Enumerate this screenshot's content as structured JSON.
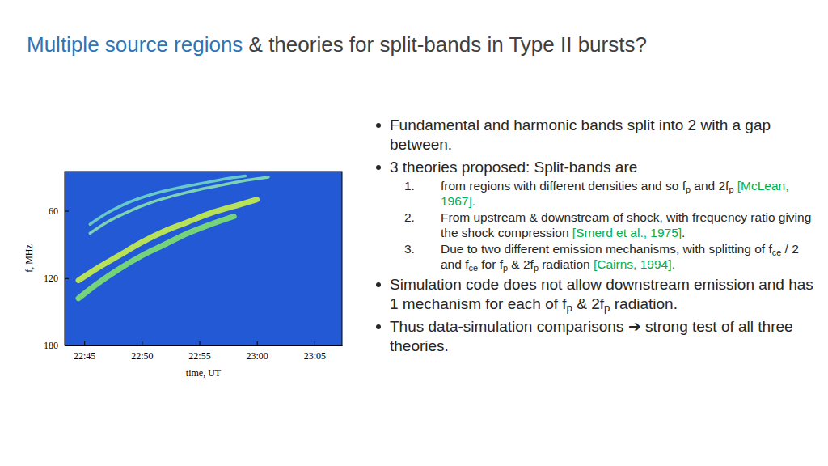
{
  "title": {
    "highlight": "Multiple source regions",
    "rest": " & theories for split-bands in Type II bursts?"
  },
  "bullets": [
    {
      "segments": [
        {
          "text": "Fundamental and harmonic bands split into 2 with a gap between."
        }
      ]
    },
    {
      "segments": [
        {
          "text": "3 theories proposed: Split-bands are"
        }
      ],
      "items": [
        {
          "number": "1.",
          "segments": [
            {
              "text": "from regions with different densities and so f"
            },
            {
              "text": "p",
              "kind": "sub"
            },
            {
              "text": " and 2f"
            },
            {
              "text": "p",
              "kind": "sub"
            },
            {
              "text": " [McLean, 1967].",
              "kind": "cite"
            }
          ]
        },
        {
          "number": "2.",
          "segments": [
            {
              "text": "From upstream & downstream of shock, with frequency ratio giving the shock compression "
            },
            {
              "text": "[Smerd et al., 1975]",
              "kind": "cite"
            },
            {
              "text": "."
            }
          ]
        },
        {
          "number": "3.",
          "segments": [
            {
              "text": "Due to two different emission mechanisms, with splitting of f"
            },
            {
              "text": "ce",
              "kind": "sub"
            },
            {
              "text": " / 2 and f"
            },
            {
              "text": "ce",
              "kind": "sub"
            },
            {
              "text": " for f"
            },
            {
              "text": "p",
              "kind": "sub"
            },
            {
              "text": " & 2f"
            },
            {
              "text": "p",
              "kind": "sub"
            },
            {
              "text": " radiation "
            },
            {
              "text": "[Cairns, 1994].",
              "kind": "cite"
            }
          ]
        }
      ]
    },
    {
      "segments": [
        {
          "text": "Simulation code does not allow downstream emission and has 1 mechanism for each of f"
        },
        {
          "text": "p",
          "kind": "sub"
        },
        {
          "text": " & 2f"
        },
        {
          "text": "p",
          "kind": "sub"
        },
        {
          "text": " radiation."
        }
      ]
    },
    {
      "segments": [
        {
          "text": "Thus data-simulation comparisons "
        },
        {
          "text": "➔"
        },
        {
          "text": " strong test of all three theories."
        }
      ]
    }
  ],
  "chart_data": {
    "type": "line",
    "x_label": "time, UT",
    "y_label": "f, MHz",
    "xlim": [
      43.3,
      67.4
    ],
    "xticks": [
      {
        "value": 45,
        "label": "22:45"
      },
      {
        "value": 50,
        "label": "22:50"
      },
      {
        "value": 55,
        "label": "22:55"
      },
      {
        "value": 60,
        "label": "23:00"
      },
      {
        "value": 65,
        "label": "23:05"
      }
    ],
    "ylim": [
      25,
      180
    ],
    "yticks": [
      60,
      120,
      180
    ],
    "series": [
      {
        "color": "#6fd6c8",
        "x": [
          45.5,
          47,
          49,
          51,
          53,
          55,
          57,
          59
        ],
        "values": [
          72,
          62,
          52,
          45,
          40,
          36,
          32,
          29
        ]
      },
      {
        "color": "#86e0b0",
        "x": [
          45.5,
          47,
          49,
          51,
          53,
          55,
          57,
          59,
          61
        ],
        "values": [
          80,
          70,
          60,
          52,
          46,
          41,
          37,
          33,
          30
        ]
      },
      {
        "color": "#c8f04a",
        "x": [
          44.5,
          46,
          48,
          50,
          52,
          54,
          56,
          58,
          60
        ],
        "values": [
          122,
          112,
          100,
          88,
          78,
          70,
          62,
          56,
          50
        ]
      },
      {
        "color": "#7ee070",
        "x": [
          44.5,
          46,
          48,
          50,
          52,
          54,
          56,
          58
        ],
        "values": [
          138,
          126,
          112,
          100,
          90,
          80,
          72,
          65
        ]
      }
    ]
  }
}
